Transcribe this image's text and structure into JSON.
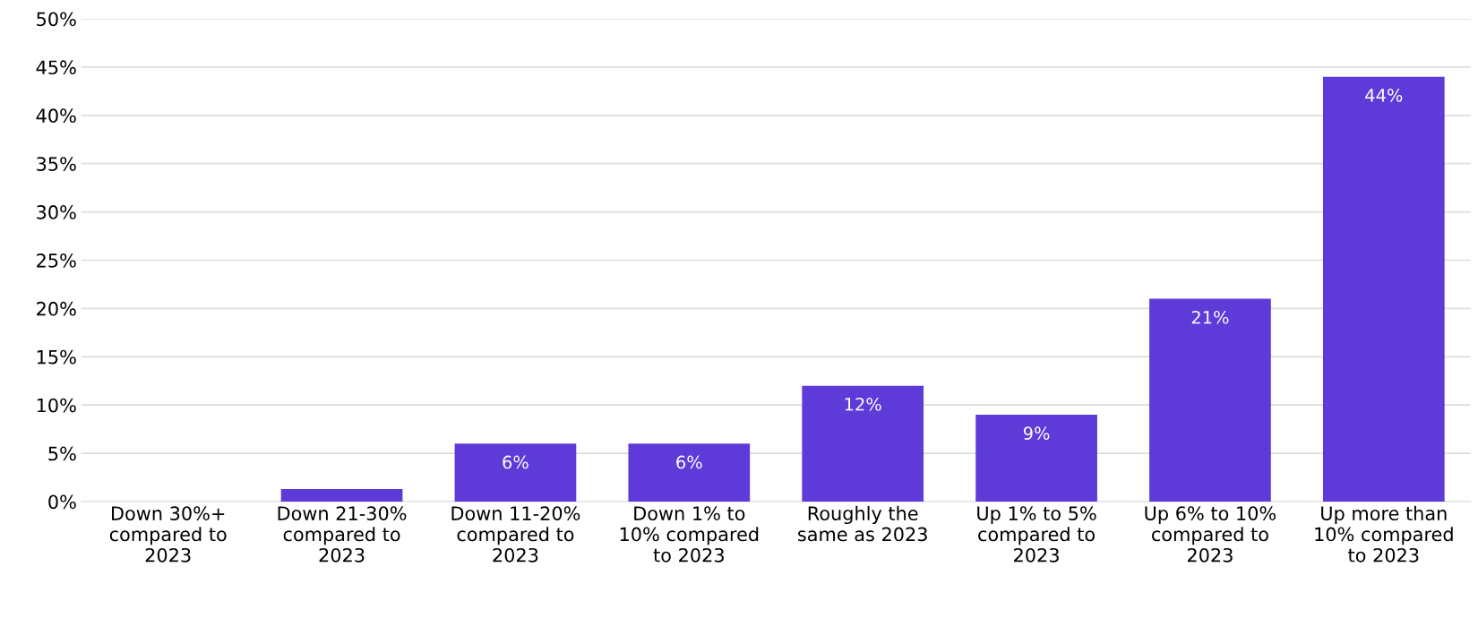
{
  "chart_data": {
    "type": "bar",
    "categories": [
      "Down 30%+\ncompared to\n2023",
      "Down 21-30%\ncompared to\n2023",
      "Down 11-20%\ncompared to\n2023",
      "Down 1% to\n10% compared\nto 2023",
      "Roughly the\nsame as 2023",
      "Up 1% to 5%\ncompared to\n2023",
      "Up 6% to 10%\ncompared to\n2023",
      "Up more than\n10% compared\nto 2023"
    ],
    "values": [
      0,
      1.3,
      6,
      6,
      12,
      9,
      21,
      44
    ],
    "value_labels": [
      null,
      null,
      "6%",
      "6%",
      "12%",
      "9%",
      "21%",
      "44%"
    ],
    "color": "#5e3bd8",
    "ylim": [
      0,
      50
    ],
    "yticks": [
      {
        "value": 0,
        "label": "0%"
      },
      {
        "value": 5,
        "label": "5%"
      },
      {
        "value": 10,
        "label": "10%"
      },
      {
        "value": 15,
        "label": "15%"
      },
      {
        "value": 20,
        "label": "20%"
      },
      {
        "value": 25,
        "label": "25%"
      },
      {
        "value": 30,
        "label": "30%"
      },
      {
        "value": 35,
        "label": "35%"
      },
      {
        "value": 40,
        "label": "40%"
      },
      {
        "value": 45,
        "label": "45%"
      },
      {
        "value": 50,
        "label": "50%"
      }
    ],
    "grid": "y"
  }
}
